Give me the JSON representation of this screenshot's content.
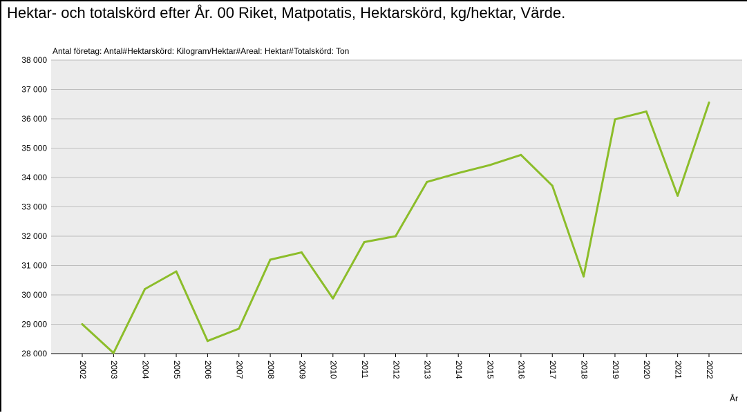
{
  "page": {
    "title": "Hektar- och totalskörd efter År. 00 Riket, Matpotatis, Hektarskörd, kg/hektar, Värde."
  },
  "chart_data": {
    "type": "line",
    "subtitle": "Antal företag: Antal#Hektarskörd: Kilogram/Hektar#Areal: Hektar#Totalskörd: Ton",
    "xlabel": "År",
    "ylabel": "",
    "ylim": [
      28000,
      38000
    ],
    "y_ticks": [
      28000,
      29000,
      30000,
      31000,
      32000,
      33000,
      34000,
      35000,
      36000,
      37000,
      38000
    ],
    "y_tick_labels": [
      "28 000",
      "29 000",
      "30 000",
      "31 000",
      "32 000",
      "33 000",
      "34 000",
      "35 000",
      "36 000",
      "37 000",
      "38 000"
    ],
    "grid": true,
    "plot_background": "#ececec",
    "line_color": "#8cbd2a",
    "categories": [
      "2002",
      "2003",
      "2004",
      "2005",
      "2006",
      "2007",
      "2008",
      "2009",
      "2010",
      "2011",
      "2012",
      "2013",
      "2014",
      "2015",
      "2016",
      "2017",
      "2018",
      "2019",
      "2020",
      "2021",
      "2022"
    ],
    "series": [
      {
        "values": [
          29000,
          28020,
          30200,
          30800,
          28430,
          28850,
          31200,
          31450,
          29880,
          31800,
          32000,
          33850,
          34150,
          34420,
          34770,
          33720,
          30630,
          35980,
          36250,
          33380,
          36550
        ]
      }
    ]
  }
}
